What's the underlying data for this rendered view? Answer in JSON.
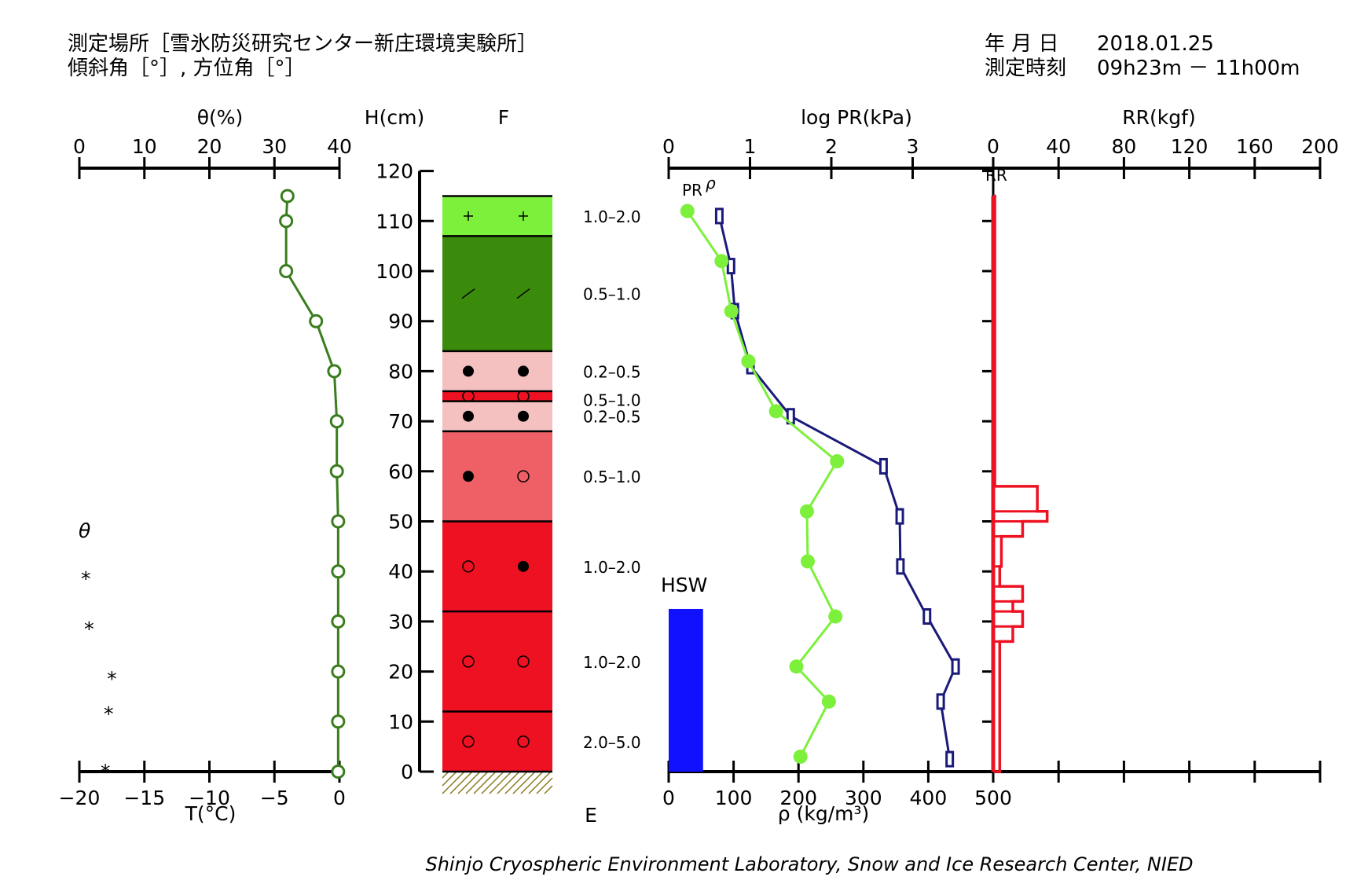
{
  "header": {
    "site": "測定場所［雪氷防災研究センター新庄環境実験所］",
    "angles": "傾斜角［°］, 方位角［°］",
    "date_label": "年 月 日",
    "date_value": "2018.01.25",
    "time_label": "測定時刻",
    "time_value": "09h23m － 11h00m"
  },
  "footer": "Shinjo Cryospheric Environment Laboratory, Snow and Ice Research Center, NIED",
  "colors": {
    "temperature": "#3a7d1e",
    "pr": "#7cf03a",
    "density": "#1a1a7a",
    "rr": "#ee1122",
    "hsw": "#1111ff"
  },
  "chart_data": [
    {
      "id": "theta-temperature",
      "type": "line",
      "top_axis": {
        "label": "θ(%)",
        "min": 0,
        "max": 40,
        "ticks": [
          "0",
          "10",
          "20",
          "30",
          "40"
        ]
      },
      "bottom_axis": {
        "label": "T(°C)",
        "min": -20,
        "max": 0,
        "ticks": [
          "−20",
          "−15",
          "−10",
          "−5",
          "0"
        ]
      },
      "theta_label": "θ",
      "theta_marker": "*",
      "theta_points": [
        {
          "h": 40,
          "theta": 1
        },
        {
          "h": 30,
          "theta": 1.5
        },
        {
          "h": 20,
          "theta": 5
        },
        {
          "h": 13,
          "theta": 4.5
        },
        {
          "h": 1.5,
          "theta": 4
        }
      ],
      "temperature": {
        "h": [
          115,
          110,
          100,
          90,
          80,
          70,
          60,
          50,
          40,
          30,
          20,
          10,
          0
        ],
        "t": [
          -4,
          -4.1,
          -4.1,
          -1.8,
          -0.4,
          -0.2,
          -0.2,
          -0.1,
          -0.1,
          -0.1,
          -0.1,
          -0.1,
          -0.1
        ]
      }
    },
    {
      "id": "height-axis",
      "label": "H(cm)",
      "min": 0,
      "max": 120,
      "ticks": [
        "0",
        "10",
        "20",
        "30",
        "40",
        "50",
        "60",
        "70",
        "80",
        "90",
        "100",
        "110",
        "120"
      ]
    },
    {
      "id": "snow-layers",
      "type": "table",
      "header": "F",
      "bottom_label": "E",
      "layers": [
        {
          "bottom": 107,
          "top": 115,
          "color": "#7cf03a",
          "symbols": [
            "+",
            "+"
          ],
          "grain": "1.0–2.0"
        },
        {
          "bottom": 84,
          "top": 107,
          "color": "#3a8a0c",
          "symbols": [
            "/",
            "/"
          ],
          "grain": "0.5–1.0"
        },
        {
          "bottom": 76,
          "top": 84,
          "color": "#f4c0c0",
          "symbols": [
            "●",
            "●"
          ],
          "grain": "0.2–0.5"
        },
        {
          "bottom": 74,
          "top": 76,
          "color": "#ee1122",
          "symbols": [
            "○",
            "○"
          ],
          "grain": "0.5–1.0"
        },
        {
          "bottom": 68,
          "top": 74,
          "color": "#f4c0c0",
          "symbols": [
            "●",
            "●"
          ],
          "grain": "0.2–0.5"
        },
        {
          "bottom": 50,
          "top": 68,
          "color": "#ee6066",
          "symbols": [
            "●",
            "○"
          ],
          "grain": "0.5–1.0"
        },
        {
          "bottom": 32,
          "top": 50,
          "color": "#ee1122",
          "symbols": [
            "○",
            "●"
          ],
          "grain": "1.0–2.0"
        },
        {
          "bottom": 12,
          "top": 32,
          "color": "#ee1122",
          "symbols": [
            "○",
            "○"
          ],
          "grain": "1.0–2.0"
        },
        {
          "bottom": 0,
          "top": 12,
          "color": "#ee1122",
          "symbols": [
            "○",
            "○"
          ],
          "grain": "2.0–5.0"
        }
      ]
    },
    {
      "id": "pr-density",
      "type": "line",
      "top_axis": {
        "label": "log PR(kPa)",
        "min": 0,
        "max": 4,
        "ticks": [
          "0",
          "1",
          "2",
          "3"
        ]
      },
      "bottom_axis": {
        "label": "ρ (kg/m³)",
        "min": 0,
        "max": 500,
        "ticks": [
          "0",
          "100",
          "200",
          "300",
          "400",
          "500"
        ]
      },
      "pr_label": "PR",
      "density_label": "ρ",
      "hsw_label": "HSW",
      "hsw_value": 53,
      "hsw_top": 32.5,
      "pr": {
        "h": [
          112,
          102,
          92,
          82,
          72,
          62,
          52,
          42,
          31,
          21,
          14,
          3
        ],
        "log_pr": [
          0.23,
          0.65,
          0.77,
          0.98,
          1.32,
          2.07,
          1.7,
          1.71,
          2.05,
          1.57,
          1.97,
          1.62
        ]
      },
      "density": {
        "h": [
          111,
          101,
          92,
          81,
          71,
          61,
          51,
          41,
          31,
          21,
          14,
          2.5
        ],
        "rho": [
          78,
          96,
          102,
          126,
          188,
          331,
          356,
          357,
          398,
          442,
          419,
          433
        ]
      }
    },
    {
      "id": "ram-resistance",
      "type": "area",
      "top_axis": {
        "label": "RR(kgf)",
        "min": 0,
        "max": 200,
        "ticks": [
          "0",
          "40",
          "80",
          "120",
          "160",
          "200"
        ]
      },
      "label": "RR",
      "profile": [
        {
          "bottom": 57,
          "top": 115,
          "rr": 1
        },
        {
          "bottom": 52,
          "top": 57,
          "rr": 27
        },
        {
          "bottom": 50,
          "top": 52,
          "rr": 33
        },
        {
          "bottom": 47,
          "top": 50,
          "rr": 18
        },
        {
          "bottom": 41,
          "top": 47,
          "rr": 5
        },
        {
          "bottom": 37,
          "top": 41,
          "rr": 4
        },
        {
          "bottom": 34,
          "top": 37,
          "rr": 18
        },
        {
          "bottom": 32,
          "top": 34,
          "rr": 12
        },
        {
          "bottom": 29,
          "top": 32,
          "rr": 18
        },
        {
          "bottom": 26,
          "top": 29,
          "rr": 12
        },
        {
          "bottom": 0,
          "top": 26,
          "rr": 4
        }
      ]
    }
  ]
}
